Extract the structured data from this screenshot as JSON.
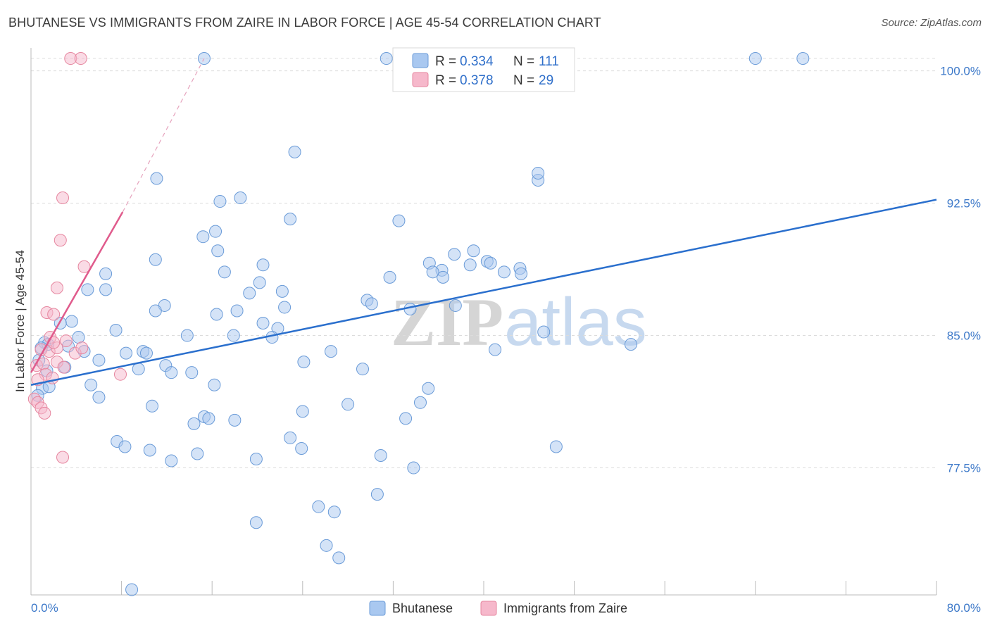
{
  "title": "BHUTANESE VS IMMIGRANTS FROM ZAIRE IN LABOR FORCE | AGE 45-54 CORRELATION CHART",
  "source": "Source: ZipAtlas.com",
  "watermark": {
    "part1": "ZIP",
    "part2": "atlas"
  },
  "colors": {
    "blue_fill": "#a9c8f0",
    "blue_stroke": "#6a9bd8",
    "blue_line": "#2a6fcd",
    "pink_fill": "#f6b8cb",
    "pink_stroke": "#e6869f",
    "pink_line": "#e05b8c",
    "grid": "#dcdcdc",
    "tick_text": "#3d79c9"
  },
  "chart_data": {
    "type": "scatter",
    "title": "BHUTANESE VS IMMIGRANTS FROM ZAIRE IN LABOR FORCE | AGE 45-54 CORRELATION CHART",
    "xlabel": "",
    "ylabel": "In Labor Force | Age 45-54",
    "xlim": [
      0,
      80
    ],
    "ylim": [
      70.3,
      101.3
    ],
    "x_tick_labels": [
      "0.0%",
      "80.0%"
    ],
    "y_ticks": [
      77.5,
      85.0,
      92.5,
      100.0
    ],
    "y_tick_labels": [
      "77.5%",
      "85.0%",
      "92.5%",
      "100.0%"
    ],
    "legend": [
      {
        "name": "Bhutanese",
        "r_label": "R =",
        "r": "0.334",
        "n_label": "N =",
        "n": "111"
      },
      {
        "name": "Immigrants from Zaire",
        "r_label": "R =",
        "r": "0.378",
        "n_label": "N =",
        "n": "29"
      }
    ],
    "series": [
      {
        "name": "Bhutanese",
        "color": "blue",
        "trend": {
          "x0": 0.0,
          "y0": 82.2,
          "x1": 80.0,
          "y1": 92.7
        },
        "points": [
          [
            15.3,
            100.7
          ],
          [
            31.4,
            100.7
          ],
          [
            64.0,
            100.7
          ],
          [
            68.2,
            100.7
          ],
          [
            23.3,
            95.4
          ],
          [
            11.1,
            93.9
          ],
          [
            44.8,
            93.8
          ],
          [
            44.8,
            94.2
          ],
          [
            16.7,
            92.6
          ],
          [
            18.5,
            92.8
          ],
          [
            22.9,
            91.6
          ],
          [
            32.5,
            91.5
          ],
          [
            16.3,
            90.9
          ],
          [
            15.2,
            90.6
          ],
          [
            16.5,
            89.8
          ],
          [
            11.0,
            89.3
          ],
          [
            20.5,
            89.0
          ],
          [
            17.1,
            88.6
          ],
          [
            37.4,
            89.6
          ],
          [
            35.2,
            89.1
          ],
          [
            38.8,
            89.0
          ],
          [
            40.3,
            89.2
          ],
          [
            40.6,
            89.1
          ],
          [
            39.1,
            89.8
          ],
          [
            36.3,
            88.7
          ],
          [
            36.4,
            88.3
          ],
          [
            35.5,
            88.6
          ],
          [
            41.8,
            88.6
          ],
          [
            43.2,
            88.8
          ],
          [
            43.3,
            88.5
          ],
          [
            6.6,
            88.5
          ],
          [
            5.0,
            87.6
          ],
          [
            6.6,
            87.6
          ],
          [
            20.2,
            88.0
          ],
          [
            19.3,
            87.4
          ],
          [
            22.2,
            87.5
          ],
          [
            29.7,
            87.0
          ],
          [
            30.1,
            86.8
          ],
          [
            31.7,
            88.3
          ],
          [
            22.4,
            86.6
          ],
          [
            37.5,
            86.7
          ],
          [
            33.5,
            86.5
          ],
          [
            11.8,
            86.7
          ],
          [
            11.0,
            86.4
          ],
          [
            18.2,
            86.4
          ],
          [
            16.4,
            86.2
          ],
          [
            20.5,
            85.7
          ],
          [
            21.8,
            85.4
          ],
          [
            3.6,
            85.8
          ],
          [
            1.2,
            84.6
          ],
          [
            1.5,
            84.5
          ],
          [
            0.9,
            84.3
          ],
          [
            3.3,
            84.4
          ],
          [
            4.7,
            84.1
          ],
          [
            8.4,
            84.0
          ],
          [
            9.9,
            84.1
          ],
          [
            10.2,
            84.0
          ],
          [
            13.8,
            85.0
          ],
          [
            17.9,
            85.0
          ],
          [
            21.3,
            84.9
          ],
          [
            26.5,
            84.1
          ],
          [
            41.0,
            84.2
          ],
          [
            0.7,
            83.6
          ],
          [
            3.0,
            83.2
          ],
          [
            6.0,
            83.6
          ],
          [
            9.5,
            83.1
          ],
          [
            11.9,
            83.3
          ],
          [
            12.4,
            82.9
          ],
          [
            14.2,
            82.9
          ],
          [
            16.2,
            82.2
          ],
          [
            24.1,
            83.5
          ],
          [
            29.3,
            83.1
          ],
          [
            1.0,
            82.0
          ],
          [
            1.6,
            82.1
          ],
          [
            0.6,
            81.6
          ],
          [
            5.3,
            82.2
          ],
          [
            6.0,
            81.5
          ],
          [
            10.7,
            81.0
          ],
          [
            24.0,
            80.7
          ],
          [
            28.0,
            81.1
          ],
          [
            15.3,
            80.4
          ],
          [
            15.7,
            80.3
          ],
          [
            14.4,
            80.0
          ],
          [
            18.0,
            80.2
          ],
          [
            22.9,
            79.2
          ],
          [
            33.1,
            80.3
          ],
          [
            34.4,
            81.2
          ],
          [
            35.1,
            82.0
          ],
          [
            7.6,
            79.0
          ],
          [
            8.3,
            78.7
          ],
          [
            10.5,
            78.5
          ],
          [
            12.4,
            77.9
          ],
          [
            14.7,
            78.3
          ],
          [
            19.9,
            78.0
          ],
          [
            23.9,
            78.6
          ],
          [
            30.9,
            78.2
          ],
          [
            33.8,
            77.5
          ],
          [
            46.4,
            78.7
          ],
          [
            30.6,
            76.0
          ],
          [
            26.8,
            75.0
          ],
          [
            19.9,
            74.4
          ],
          [
            25.4,
            75.3
          ],
          [
            26.1,
            73.1
          ],
          [
            27.2,
            72.4
          ],
          [
            8.9,
            70.6
          ],
          [
            1.4,
            83.0
          ],
          [
            4.2,
            84.9
          ],
          [
            2.6,
            85.7
          ],
          [
            53.0,
            84.5
          ],
          [
            7.5,
            85.3
          ],
          [
            45.3,
            85.2
          ]
        ]
      },
      {
        "name": "Immigrants from Zaire",
        "color": "pink",
        "trend": {
          "x0": 0.0,
          "y0": 82.9,
          "x1": 8.1,
          "y1": 92.0
        },
        "trend_dashed": {
          "x0": 8.1,
          "y0": 92.0,
          "x1": 15.3,
          "y1": 100.7
        },
        "points": [
          [
            3.5,
            100.7
          ],
          [
            4.4,
            100.7
          ],
          [
            2.8,
            92.8
          ],
          [
            2.6,
            90.4
          ],
          [
            4.7,
            88.9
          ],
          [
            2.3,
            87.7
          ],
          [
            1.4,
            86.3
          ],
          [
            2.0,
            86.2
          ],
          [
            1.7,
            84.9
          ],
          [
            3.1,
            84.7
          ],
          [
            0.9,
            84.2
          ],
          [
            1.6,
            84.1
          ],
          [
            2.3,
            84.3
          ],
          [
            2.3,
            83.5
          ],
          [
            3.9,
            84.0
          ],
          [
            4.5,
            84.3
          ],
          [
            0.5,
            83.3
          ],
          [
            1.1,
            83.4
          ],
          [
            2.9,
            83.2
          ],
          [
            1.3,
            82.8
          ],
          [
            0.6,
            82.5
          ],
          [
            1.9,
            82.6
          ],
          [
            7.9,
            82.8
          ],
          [
            0.3,
            81.4
          ],
          [
            0.6,
            81.2
          ],
          [
            0.9,
            80.9
          ],
          [
            1.2,
            80.6
          ],
          [
            2.8,
            78.1
          ],
          [
            2.0,
            84.6
          ]
        ]
      }
    ]
  }
}
